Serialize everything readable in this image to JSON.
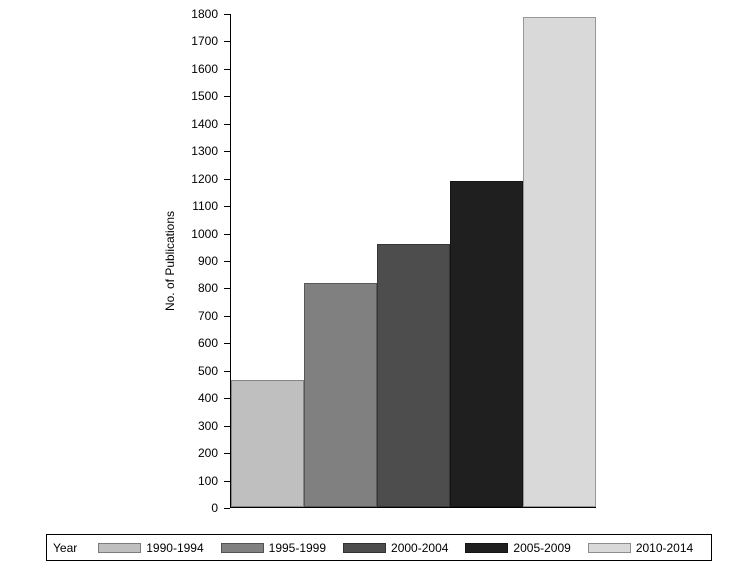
{
  "chart_data": {
    "type": "bar",
    "title": "",
    "xlabel": "",
    "ylabel": "No. of Publications",
    "ylim": [
      0,
      1800
    ],
    "ytick_step": 100,
    "grid": false,
    "legend_title": "Year",
    "legend_position": "bottom",
    "categories": [
      "1990-1994",
      "1995-1999",
      "2000-2004",
      "2005-2009",
      "2010-2014"
    ],
    "values": [
      465,
      818,
      960,
      1192,
      1790
    ],
    "colors": [
      "#bfbfbf",
      "#808080",
      "#4d4d4d",
      "#1f1f1f",
      "#d9d9d9"
    ]
  }
}
